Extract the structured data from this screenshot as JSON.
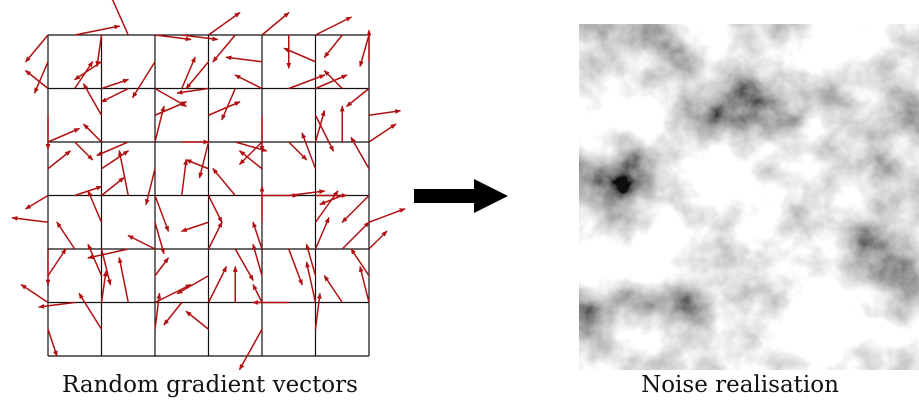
{
  "left_panel": {
    "caption": "Random gradient vectors",
    "grid_cells": 6,
    "vector_color": "#b01010",
    "gradient_vectors": [
      [
        -25,
        30
      ],
      [
        50,
        -10
      ],
      [
        -15,
        35
      ],
      [
        -5,
        35
      ],
      [
        -20,
        -45
      ],
      [
        -30,
        20
      ],
      [
        40,
        5
      ],
      [
        40,
        5
      ],
      [
        -25,
        40
      ],
      [
        35,
        -25
      ],
      [
        -25,
        30
      ],
      [
        -25,
        30
      ],
      [
        30,
        -25
      ],
      [
        0,
        37
      ],
      [
        -40,
        -5
      ],
      [
        40,
        -20
      ],
      [
        -20,
        25
      ],
      [
        -35,
        -15
      ],
      [
        -10,
        35
      ],
      [
        -35,
        -10
      ],
      [
        0,
        -35
      ],
      [
        -25,
        -20
      ],
      [
        20,
        -30
      ],
      [
        0,
        38
      ],
      [
        30,
        -10
      ],
      [
        -30,
        15
      ],
      [
        -20,
        -35
      ],
      [
        35,
        20
      ],
      [
        15,
        -35
      ],
      [
        35,
        -15
      ],
      [
        -35,
        5
      ],
      [
        -15,
        35
      ],
      [
        35,
        -15
      ],
      [
        -30,
        -15
      ],
      [
        40,
        -15
      ],
      [
        0,
        40
      ],
      [
        35,
        -15
      ],
      [
        -20,
        -20
      ],
      [
        20,
        40
      ],
      [
        -25,
        20
      ],
      [
        -25,
        -25
      ],
      [
        35,
        -5
      ],
      [
        35,
        -15
      ],
      [
        20,
        20
      ],
      [
        25,
        -20
      ],
      [
        -20,
        -20
      ],
      [
        -35,
        15
      ],
      [
        30,
        -20
      ],
      [
        10,
        -40
      ],
      [
        30,
        0
      ],
      [
        -10,
        40
      ],
      [
        -10,
        40
      ],
      [
        35,
        10
      ],
      [
        -25,
        -10
      ],
      [
        -25,
        25
      ],
      [
        20,
        20
      ],
      [
        -25,
        -20
      ],
      [
        10,
        -35
      ],
      [
        0,
        -40
      ],
      [
        -15,
        -40
      ],
      [
        30,
        -20
      ],
      [
        -15,
        35
      ],
      [
        -20,
        -35
      ],
      [
        -25,
        15
      ],
      [
        30,
        -10
      ],
      [
        -40,
        -5
      ],
      [
        25,
        -20
      ],
      [
        -10,
        -50
      ],
      [
        -15,
        -35
      ],
      [
        15,
        40
      ],
      [
        5,
        -40
      ],
      [
        10,
        35
      ],
      [
        15,
        30
      ],
      [
        -25,
        -30
      ],
      [
        -30,
        10
      ],
      [
        40,
        0
      ],
      [
        40,
        -5
      ],
      [
        0,
        -40
      ],
      [
        35,
        0
      ],
      [
        -25,
        10
      ],
      [
        25,
        -35
      ],
      [
        -30,
        30
      ],
      [
        35,
        -15
      ],
      [
        40,
        -15
      ],
      [
        0,
        40
      ],
      [
        -20,
        -30
      ],
      [
        20,
        -30
      ],
      [
        10,
        40
      ],
      [
        -45,
        10
      ],
      [
        -15,
        -35
      ],
      [
        -30,
        -15
      ],
      [
        0,
        0
      ],
      [
        15,
        -20
      ],
      [
        15,
        -30
      ],
      [
        20,
        35
      ],
      [
        -35,
        20
      ],
      [
        -10,
        -30
      ],
      [
        15,
        40
      ],
      [
        -10,
        -35
      ],
      [
        15,
        -35
      ],
      [
        30,
        -30
      ],
      [
        -10,
        -35
      ],
      [
        20,
        -20
      ],
      [
        -10,
        30
      ],
      [
        -20,
        -30
      ],
      [
        -30,
        -20
      ],
      [
        -40,
        5
      ],
      [
        10,
        30
      ],
      [
        5,
        -35
      ],
      [
        -10,
        -50
      ],
      [
        -25,
        -40
      ],
      [
        40,
        -20
      ],
      [
        -20,
        25
      ],
      [
        5,
        -40
      ],
      [
        20,
        -40
      ],
      [
        0,
        -40
      ],
      [
        -25,
        -20
      ],
      [
        -10,
        -20
      ],
      [
        -40,
        0
      ],
      [
        -25,
        45
      ],
      [
        -10,
        -45
      ],
      [
        -20,
        -30
      ],
      [
        5,
        -40
      ],
      [
        -10,
        -40
      ]
    ]
  },
  "right_panel": {
    "caption": "Noise realisation"
  }
}
